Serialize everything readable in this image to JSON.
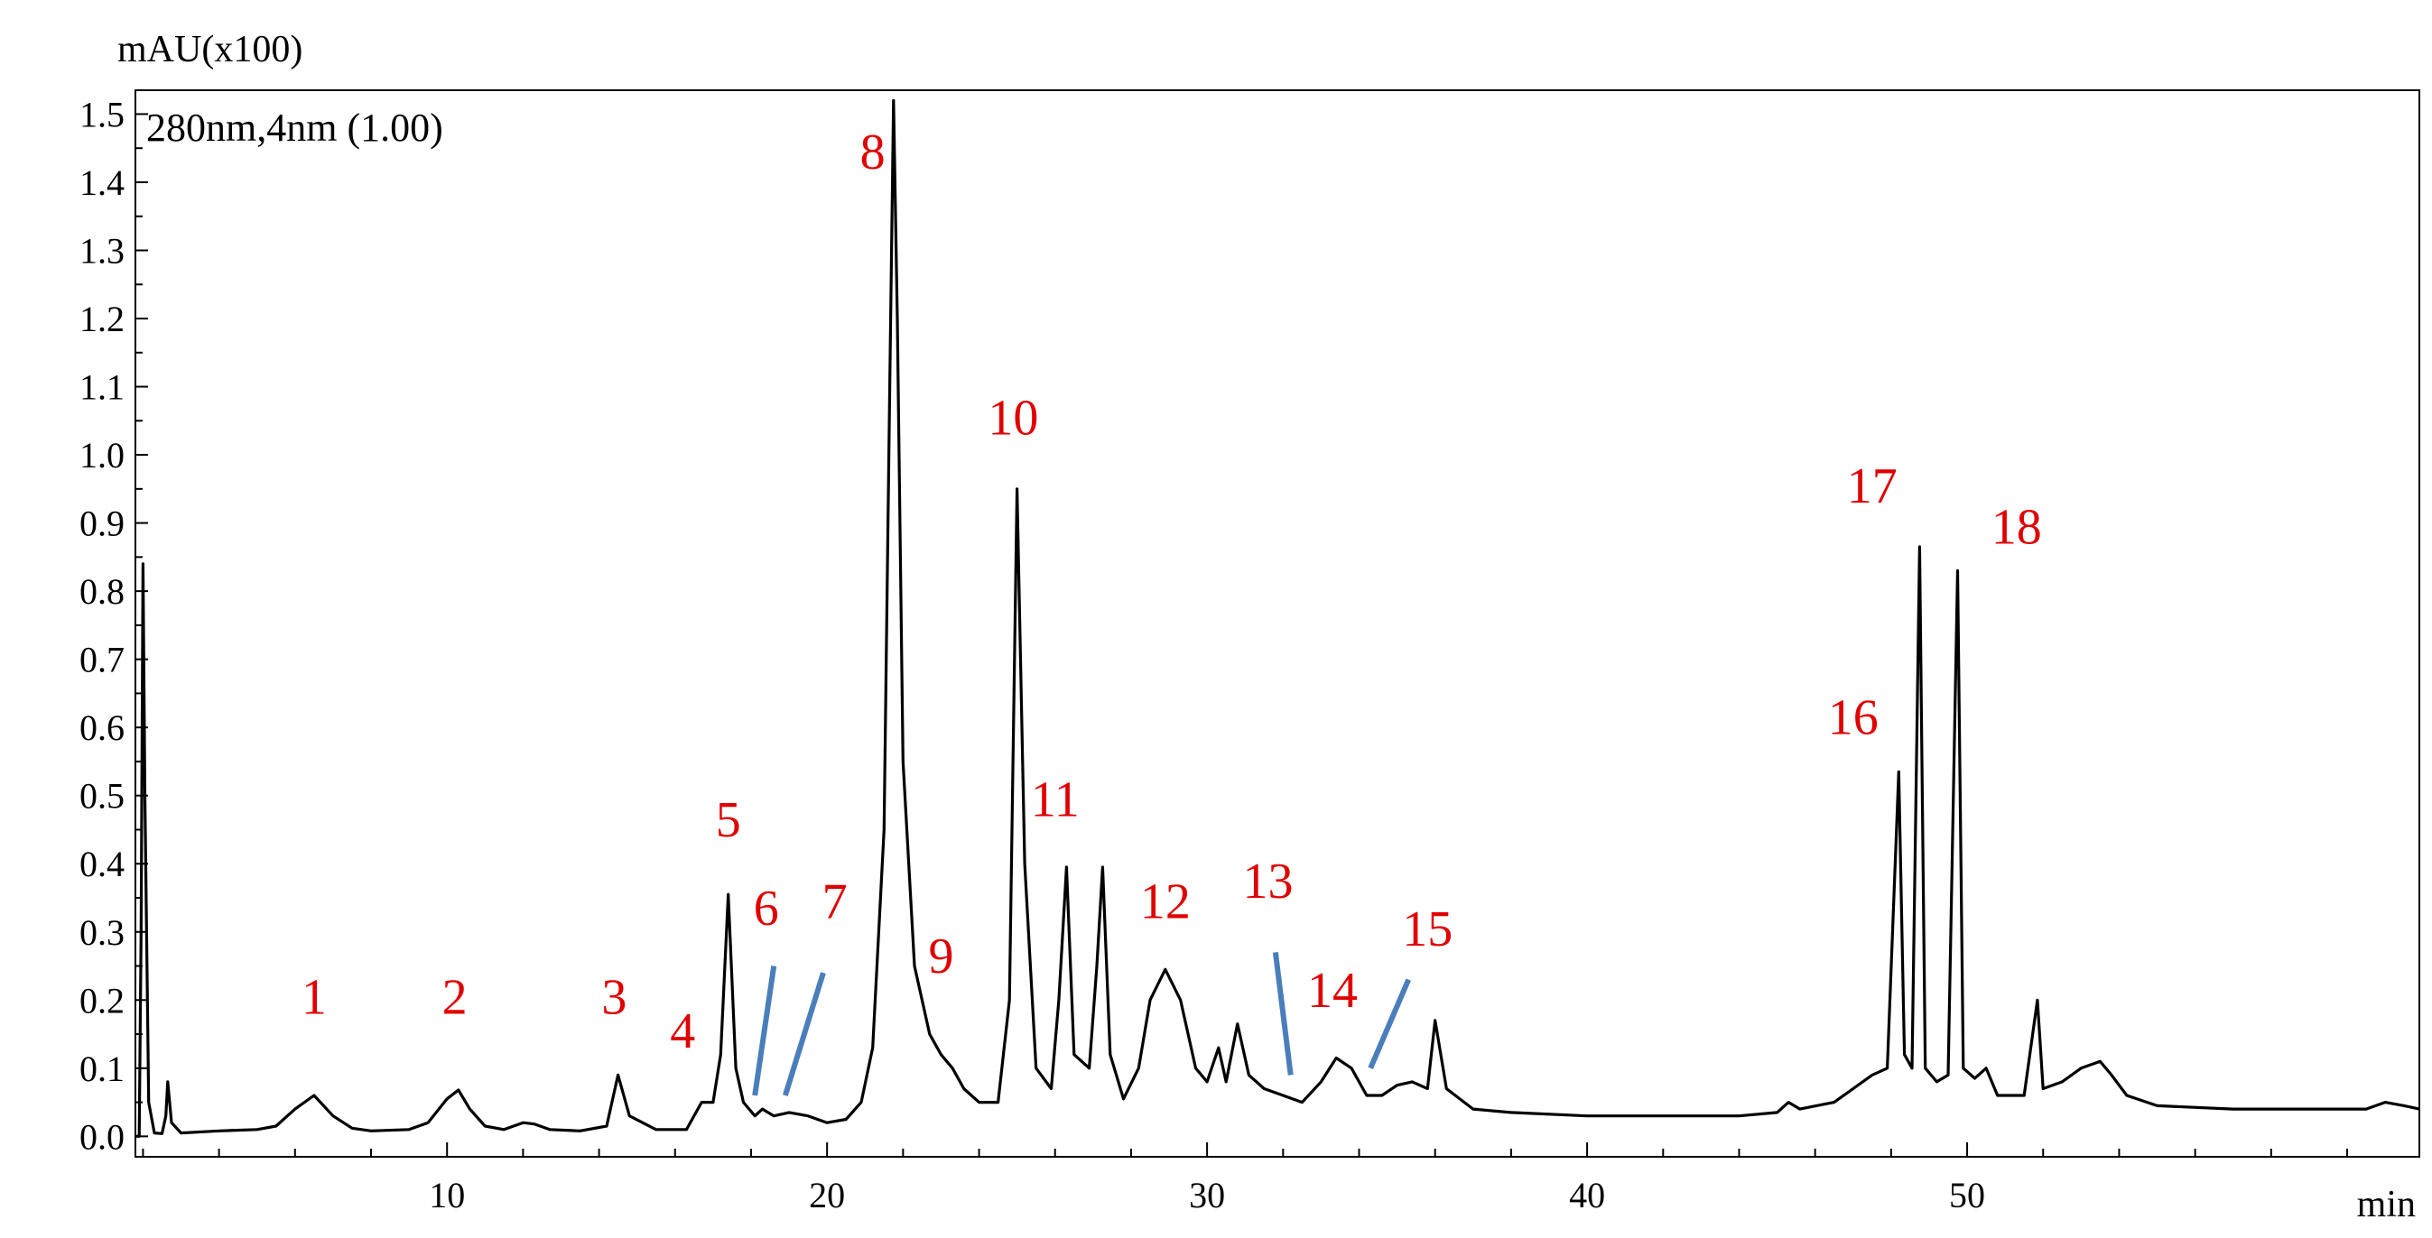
{
  "chart_data": {
    "type": "line",
    "title": "",
    "ylabel": "mAU(x100)",
    "xlabel": "min",
    "annotation": "280nm,4nm (1.00)",
    "xlim": [
      1.8,
      61.9
    ],
    "ylim": [
      -0.03,
      1.535
    ],
    "x_ticks": [
      10,
      20,
      30,
      40,
      50
    ],
    "y_ticks": [
      0.0,
      0.1,
      0.2,
      0.3,
      0.4,
      0.5,
      0.6,
      0.7,
      0.8,
      0.9,
      1.0,
      1.1,
      1.2,
      1.3,
      1.4,
      1.5
    ],
    "grid": false,
    "line_color": "#000000",
    "label_color": "#e00000",
    "marker_color": "#4a7ebb",
    "series": [
      {
        "values": [
          [
            1.8,
            0.0
          ],
          [
            1.9,
            0.0
          ],
          [
            1.95,
            0.3
          ],
          [
            2.0,
            0.84
          ],
          [
            2.05,
            0.5
          ],
          [
            2.15,
            0.05
          ],
          [
            2.3,
            0.005
          ],
          [
            2.5,
            0.004
          ],
          [
            2.6,
            0.03
          ],
          [
            2.65,
            0.08
          ],
          [
            2.75,
            0.02
          ],
          [
            3.0,
            0.005
          ],
          [
            4.0,
            0.008
          ],
          [
            5.0,
            0.01
          ],
          [
            5.5,
            0.015
          ],
          [
            6.0,
            0.04
          ],
          [
            6.5,
            0.06
          ],
          [
            7.0,
            0.03
          ],
          [
            7.5,
            0.012
          ],
          [
            8.0,
            0.008
          ],
          [
            9.0,
            0.01
          ],
          [
            9.5,
            0.02
          ],
          [
            10.0,
            0.055
          ],
          [
            10.3,
            0.068
          ],
          [
            10.6,
            0.04
          ],
          [
            11.0,
            0.015
          ],
          [
            11.5,
            0.01
          ],
          [
            12.0,
            0.02
          ],
          [
            12.3,
            0.018
          ],
          [
            12.7,
            0.01
          ],
          [
            13.5,
            0.008
          ],
          [
            14.2,
            0.015
          ],
          [
            14.5,
            0.09
          ],
          [
            14.8,
            0.03
          ],
          [
            15.5,
            0.01
          ],
          [
            16.3,
            0.01
          ],
          [
            16.7,
            0.05
          ],
          [
            17.0,
            0.05
          ],
          [
            17.2,
            0.12
          ],
          [
            17.4,
            0.355
          ],
          [
            17.6,
            0.1
          ],
          [
            17.8,
            0.05
          ],
          [
            18.1,
            0.03
          ],
          [
            18.3,
            0.04
          ],
          [
            18.6,
            0.03
          ],
          [
            19.0,
            0.035
          ],
          [
            19.5,
            0.03
          ],
          [
            20.0,
            0.02
          ],
          [
            20.5,
            0.025
          ],
          [
            20.9,
            0.05
          ],
          [
            21.2,
            0.13
          ],
          [
            21.5,
            0.45
          ],
          [
            21.65,
            1.1
          ],
          [
            21.75,
            1.52
          ],
          [
            21.85,
            1.2
          ],
          [
            22.0,
            0.55
          ],
          [
            22.3,
            0.25
          ],
          [
            22.7,
            0.15
          ],
          [
            23.0,
            0.12
          ],
          [
            23.3,
            0.1
          ],
          [
            23.6,
            0.07
          ],
          [
            24.0,
            0.05
          ],
          [
            24.5,
            0.05
          ],
          [
            24.8,
            0.2
          ],
          [
            25.0,
            0.95
          ],
          [
            25.2,
            0.4
          ],
          [
            25.5,
            0.1
          ],
          [
            25.9,
            0.07
          ],
          [
            26.1,
            0.2
          ],
          [
            26.3,
            0.395
          ],
          [
            26.5,
            0.12
          ],
          [
            26.9,
            0.1
          ],
          [
            27.1,
            0.25
          ],
          [
            27.25,
            0.395
          ],
          [
            27.45,
            0.12
          ],
          [
            27.8,
            0.055
          ],
          [
            28.2,
            0.1
          ],
          [
            28.5,
            0.2
          ],
          [
            28.9,
            0.245
          ],
          [
            29.3,
            0.2
          ],
          [
            29.7,
            0.1
          ],
          [
            30.0,
            0.08
          ],
          [
            30.3,
            0.13
          ],
          [
            30.5,
            0.08
          ],
          [
            30.8,
            0.165
          ],
          [
            31.1,
            0.09
          ],
          [
            31.5,
            0.07
          ],
          [
            32.0,
            0.06
          ],
          [
            32.5,
            0.05
          ],
          [
            33.0,
            0.08
          ],
          [
            33.4,
            0.115
          ],
          [
            33.8,
            0.1
          ],
          [
            34.2,
            0.06
          ],
          [
            34.6,
            0.06
          ],
          [
            35.0,
            0.075
          ],
          [
            35.4,
            0.08
          ],
          [
            35.8,
            0.07
          ],
          [
            36.0,
            0.17
          ],
          [
            36.3,
            0.07
          ],
          [
            37.0,
            0.04
          ],
          [
            38.0,
            0.035
          ],
          [
            40.0,
            0.03
          ],
          [
            42.0,
            0.03
          ],
          [
            44.0,
            0.03
          ],
          [
            45.0,
            0.035
          ],
          [
            45.3,
            0.05
          ],
          [
            45.6,
            0.04
          ],
          [
            46.5,
            0.05
          ],
          [
            47.0,
            0.07
          ],
          [
            47.5,
            0.09
          ],
          [
            47.9,
            0.1
          ],
          [
            48.2,
            0.535
          ],
          [
            48.35,
            0.12
          ],
          [
            48.55,
            0.1
          ],
          [
            48.75,
            0.865
          ],
          [
            48.9,
            0.1
          ],
          [
            49.2,
            0.08
          ],
          [
            49.5,
            0.09
          ],
          [
            49.75,
            0.83
          ],
          [
            49.9,
            0.1
          ],
          [
            50.2,
            0.085
          ],
          [
            50.5,
            0.1
          ],
          [
            50.8,
            0.06
          ],
          [
            51.5,
            0.06
          ],
          [
            51.85,
            0.2
          ],
          [
            52.0,
            0.07
          ],
          [
            52.5,
            0.08
          ],
          [
            53.0,
            0.1
          ],
          [
            53.5,
            0.11
          ],
          [
            53.8,
            0.09
          ],
          [
            54.2,
            0.06
          ],
          [
            55.0,
            0.045
          ],
          [
            57.0,
            0.04
          ],
          [
            59.0,
            0.04
          ],
          [
            60.5,
            0.04
          ],
          [
            61.0,
            0.05
          ],
          [
            61.5,
            0.045
          ],
          [
            61.9,
            0.04
          ]
        ]
      }
    ],
    "peaks": [
      {
        "label": "1",
        "x": 6.5,
        "y": 0.18
      },
      {
        "label": "2",
        "x": 10.2,
        "y": 0.18
      },
      {
        "label": "3",
        "x": 14.4,
        "y": 0.18
      },
      {
        "label": "4",
        "x": 16.2,
        "y": 0.13
      },
      {
        "label": "5",
        "x": 17.4,
        "y": 0.44
      },
      {
        "label": "6",
        "x": 18.4,
        "y": 0.31
      },
      {
        "label": "7",
        "x": 20.2,
        "y": 0.32
      },
      {
        "label": "8",
        "x": 21.2,
        "y": 1.42
      },
      {
        "label": "9",
        "x": 23.0,
        "y": 0.24
      },
      {
        "label": "10",
        "x": 24.9,
        "y": 1.03
      },
      {
        "label": "11",
        "x": 26.0,
        "y": 0.47
      },
      {
        "label": "12",
        "x": 28.9,
        "y": 0.32
      },
      {
        "label": "13",
        "x": 31.6,
        "y": 0.35
      },
      {
        "label": "14",
        "x": 33.3,
        "y": 0.19
      },
      {
        "label": "15",
        "x": 35.8,
        "y": 0.28
      },
      {
        "label": "16",
        "x": 47.0,
        "y": 0.59
      },
      {
        "label": "17",
        "x": 47.5,
        "y": 0.93
      },
      {
        "label": "18",
        "x": 51.3,
        "y": 0.87
      }
    ],
    "leader_lines": [
      {
        "peak": "6",
        "from": [
          18.1,
          0.06
        ],
        "to": [
          18.6,
          0.25
        ]
      },
      {
        "peak": "7",
        "from": [
          18.9,
          0.06
        ],
        "to": [
          19.9,
          0.24
        ]
      },
      {
        "peak": "13",
        "from": [
          31.8,
          0.27
        ],
        "to": [
          32.2,
          0.09
        ]
      },
      {
        "peak": "15",
        "from": [
          34.3,
          0.1
        ],
        "to": [
          35.3,
          0.23
        ]
      }
    ]
  }
}
